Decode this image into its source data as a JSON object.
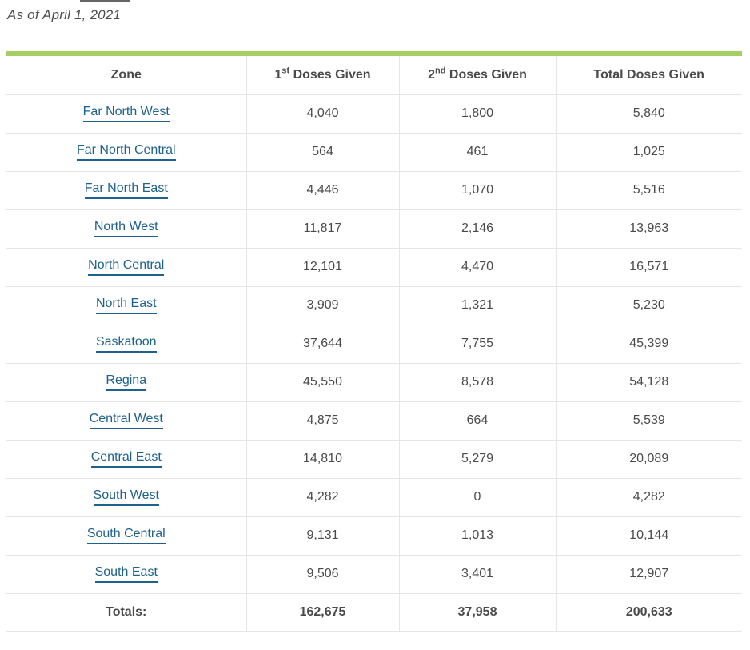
{
  "page": {
    "as_of": "As of April 1, 2021"
  },
  "colors": {
    "accent_green": "#a5ce64",
    "link_blue": "#1e618d",
    "border_gray": "#e5e5e5",
    "text_dark": "#4a4a4a"
  },
  "table": {
    "header": {
      "zone": "Zone",
      "first_pre": "1",
      "first_sup": "st",
      "first_post": " Doses Given",
      "second_pre": "2",
      "second_sup": "nd",
      "second_post": " Doses Given",
      "total": "Total Doses Given"
    },
    "rows": [
      {
        "zone": "Far North West",
        "first": "4,040",
        "second": "1,800",
        "total": "5,840"
      },
      {
        "zone": "Far North Central",
        "first": "564",
        "second": "461",
        "total": "1,025"
      },
      {
        "zone": "Far North East",
        "first": "4,446",
        "second": "1,070",
        "total": "5,516"
      },
      {
        "zone": "North West",
        "first": "11,817",
        "second": "2,146",
        "total": "13,963"
      },
      {
        "zone": "North Central",
        "first": "12,101",
        "second": "4,470",
        "total": "16,571"
      },
      {
        "zone": "North East",
        "first": "3,909",
        "second": "1,321",
        "total": "5,230"
      },
      {
        "zone": "Saskatoon",
        "first": "37,644",
        "second": "7,755",
        "total": "45,399"
      },
      {
        "zone": "Regina",
        "first": "45,550",
        "second": "8,578",
        "total": "54,128"
      },
      {
        "zone": "Central West",
        "first": "4,875",
        "second": "664",
        "total": "5,539"
      },
      {
        "zone": "Central East",
        "first": "14,810",
        "second": "5,279",
        "total": "20,089"
      },
      {
        "zone": "South West",
        "first": "4,282",
        "second": "0",
        "total": "4,282"
      },
      {
        "zone": "South Central",
        "first": "9,131",
        "second": "1,013",
        "total": "10,144"
      },
      {
        "zone": "South East",
        "first": "9,506",
        "second": "3,401",
        "total": "12,907"
      }
    ],
    "totals": {
      "label": "Totals:",
      "first": "162,675",
      "second": "37,958",
      "total": "200,633"
    }
  },
  "chart_data": {
    "type": "table",
    "title": "As of April 1, 2021",
    "columns": [
      "Zone",
      "1st Doses Given",
      "2nd Doses Given",
      "Total Doses Given"
    ],
    "rows": [
      [
        "Far North West",
        4040,
        1800,
        5840
      ],
      [
        "Far North Central",
        564,
        461,
        1025
      ],
      [
        "Far North East",
        4446,
        1070,
        5516
      ],
      [
        "North West",
        11817,
        2146,
        13963
      ],
      [
        "North Central",
        12101,
        4470,
        16571
      ],
      [
        "North East",
        3909,
        1321,
        5230
      ],
      [
        "Saskatoon",
        37644,
        7755,
        45399
      ],
      [
        "Regina",
        45550,
        8578,
        54128
      ],
      [
        "Central West",
        4875,
        664,
        5539
      ],
      [
        "Central East",
        14810,
        5279,
        20089
      ],
      [
        "South West",
        4282,
        0,
        4282
      ],
      [
        "South Central",
        9131,
        1013,
        10144
      ],
      [
        "South East",
        9506,
        3401,
        12907
      ],
      [
        "Totals:",
        162675,
        37958,
        200633
      ]
    ]
  }
}
